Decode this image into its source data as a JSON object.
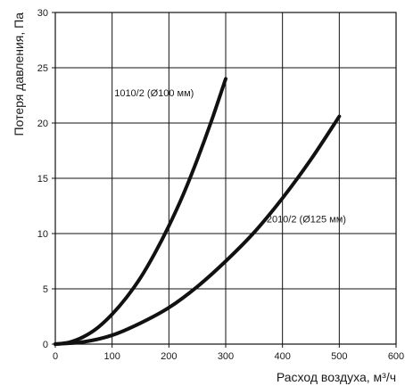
{
  "chart_data": {
    "type": "line",
    "title": "",
    "xlabel": "Расход воздуха, м³/ч",
    "ylabel": "Потеря давления, Па",
    "xlim": [
      0,
      600
    ],
    "ylim": [
      0,
      30
    ],
    "xticks": [
      "0",
      "100",
      "200",
      "300",
      "400",
      "500",
      "600"
    ],
    "yticks": [
      "0",
      "5",
      "10",
      "15",
      "20",
      "25",
      "30"
    ],
    "grid": true,
    "legend": "none",
    "series": [
      {
        "name": "1010/2 (Ø100 мм)",
        "color": "#111111",
        "x": [
          0,
          25,
          50,
          75,
          100,
          125,
          150,
          175,
          200,
          225,
          250,
          275,
          300
        ],
        "y": [
          0,
          0.17,
          0.67,
          1.5,
          2.7,
          4.2,
          6.0,
          8.2,
          10.7,
          13.5,
          16.7,
          20.2,
          24.0
        ]
      },
      {
        "name": "2010/2 (Ø125 мм)",
        "color": "#111111",
        "x": [
          0,
          50,
          100,
          150,
          200,
          250,
          300,
          350,
          400,
          450,
          500
        ],
        "y": [
          0,
          0.2,
          0.8,
          1.9,
          3.3,
          5.2,
          7.5,
          10.1,
          13.2,
          16.7,
          20.6
        ]
      }
    ]
  }
}
